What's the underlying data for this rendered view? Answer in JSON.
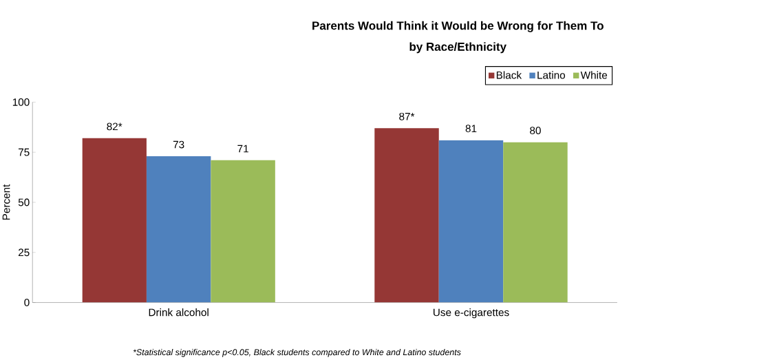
{
  "chart_data": {
    "type": "bar",
    "title": "Parents Would Think it Would be Wrong for Them To",
    "subtitle": "by Race/Ethnicity",
    "ylabel": "Percent",
    "categories": [
      "Drink alcohol",
      "Use e-cigarettes"
    ],
    "series": [
      {
        "name": "Black",
        "color": "#953735",
        "values": [
          82,
          87
        ],
        "value_labels": [
          "82*",
          "87*"
        ]
      },
      {
        "name": "Latino",
        "color": "#4f81bd",
        "values": [
          73,
          81
        ],
        "value_labels": [
          "73",
          "81"
        ]
      },
      {
        "name": "White",
        "color": "#9bbb59",
        "values": [
          71,
          80
        ],
        "value_labels": [
          "71",
          "80"
        ]
      }
    ],
    "ylim": [
      0,
      100
    ],
    "yticks": [
      0,
      25,
      50,
      75,
      100
    ],
    "grid": false,
    "legend": "top right",
    "annotations": [
      "*Statistical significance p<0.05, Black students compared to White and Latino students"
    ]
  }
}
